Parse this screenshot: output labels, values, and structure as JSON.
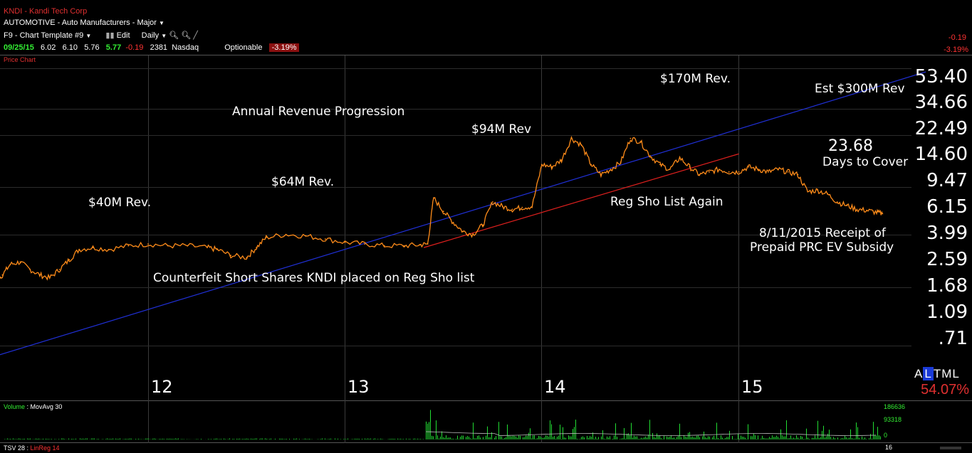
{
  "header": {
    "symbol_line": "KNDI - Kandi Tech Corp",
    "sector_line": "AUTOMOTIVE - Auto Manufacturers - Major",
    "template": "F9 - Chart Template #9",
    "edit": "Edit",
    "period": "Daily",
    "quote": {
      "date": "09/25/15",
      "open": "6.02",
      "high": "6.10",
      "low": "5.76",
      "close": "5.77",
      "change": "-0.19",
      "volume": "2381",
      "exchange": "Nasdaq",
      "optionable": "Optionable",
      "pct": "-3.19%"
    },
    "right_change": "-0.19",
    "right_pct": "-3.19%",
    "panel_label": "Price Chart"
  },
  "colors": {
    "price": "#ff8c1a",
    "linreg": "#e0201e",
    "trend": "#2030d8",
    "volume": "#22dd33",
    "up": "#33ee33",
    "down": "#ff3333",
    "label_red": "#e03030"
  },
  "chart_data": {
    "type": "line",
    "scale": "log",
    "title": "",
    "xlabel": "",
    "ylabel": "",
    "x_tick_labels": [
      "12",
      "13",
      "14",
      "15"
    ],
    "y_tick_labels": [
      "53.40",
      "34.66",
      "22.49",
      "14.60",
      "9.47",
      "6.15",
      "3.99",
      "2.59",
      "1.68",
      "1.09",
      ".71"
    ],
    "ylim": [
      0.6,
      60
    ],
    "xlim": [
      2011.0,
      2015.95
    ],
    "grid": true,
    "series": [
      {
        "name": "",
        "x": [
          2011.0,
          2011.03,
          2011.06,
          2011.08,
          2011.12,
          2011.18,
          2011.22,
          2011.26,
          2011.3,
          2011.35,
          2011.4,
          2011.45,
          2011.5,
          2011.55,
          2011.6,
          2011.65,
          2011.72,
          2011.8,
          2011.9,
          2012.0,
          2012.1,
          2012.2,
          2012.3,
          2012.35,
          2012.42,
          2012.5,
          2012.55,
          2012.6,
          2012.7,
          2012.8,
          2012.9,
          2013.0,
          2013.1,
          2013.2,
          2013.3,
          2013.38,
          2013.42,
          2013.45,
          2013.5,
          2013.55,
          2013.6,
          2013.65,
          2013.7,
          2013.75,
          2013.8,
          2013.85,
          2013.9,
          2013.95,
          2014.0,
          2014.05,
          2014.1,
          2014.15,
          2014.2,
          2014.25,
          2014.3,
          2014.35,
          2014.4,
          2014.45,
          2014.5,
          2014.55,
          2014.6,
          2014.65,
          2014.7,
          2014.75,
          2014.8,
          2014.85,
          2014.9,
          2014.95,
          2015.0,
          2015.05,
          2015.1,
          2015.15,
          2015.2,
          2015.25,
          2015.3,
          2015.35,
          2015.4,
          2015.45,
          2015.5,
          2015.55,
          2015.6,
          2015.65,
          2015.7,
          2015.73
        ],
        "y": [
          2.9,
          2.6,
          2.3,
          2.1,
          2.0,
          1.9,
          1.85,
          2.1,
          2.5,
          2.6,
          2.3,
          2.1,
          2.0,
          2.3,
          2.7,
          3.2,
          3.3,
          3.2,
          3.4,
          3.5,
          3.4,
          3.4,
          3.3,
          3.2,
          2.9,
          2.8,
          3.3,
          3.9,
          4.1,
          4.0,
          3.8,
          3.6,
          3.5,
          3.4,
          3.4,
          3.45,
          3.5,
          7.5,
          6.0,
          5.0,
          4.3,
          4.1,
          4.8,
          7.0,
          6.5,
          6.2,
          6.4,
          6.5,
          13.0,
          12.5,
          14.0,
          20.0,
          18.0,
          13.0,
          11.0,
          12.0,
          13.5,
          20.0,
          19.0,
          15.0,
          13.0,
          12.0,
          14.5,
          12.5,
          11.0,
          11.5,
          12.0,
          11.5,
          11.5,
          12.5,
          12.0,
          11.5,
          12.0,
          11.5,
          11.0,
          8.3,
          8.5,
          8.0,
          7.0,
          6.6,
          6.2,
          6.1,
          5.9,
          5.77
        ]
      }
    ],
    "overlays": [
      {
        "name": "",
        "type": "linreg",
        "points": [
          [
            2013.4,
            3.3
          ],
          [
            2015.0,
            15.5
          ]
        ]
      },
      {
        "name": "",
        "type": "trendline",
        "points": [
          [
            2011.0,
            0.44
          ],
          [
            2015.95,
            60.0
          ]
        ]
      }
    ],
    "annotations": [
      "$40M Rev.",
      "$64M Rev.",
      "Annual Revenue Progression",
      "$94M Rev",
      "$170M Rev.",
      "Est $300M Rev",
      "23.68",
      "Days to Cover",
      "Reg Sho List Again",
      "8/11/2015 Receipt of",
      "Prepaid PRC EV Subsidy",
      "Counterfeit Short Shares KNDI placed on Reg Sho list"
    ],
    "volume": {
      "label": "Volume",
      "ma_label": "MovAvg 30",
      "tick_labels": [
        "186636",
        "93318",
        "0"
      ],
      "max": 186636
    }
  },
  "right_panel": {
    "modes": [
      "A",
      "L",
      "T",
      "M",
      "L"
    ],
    "active_mode": "L",
    "value": "54.07%"
  },
  "footer": {
    "tsv": "TSV 28",
    "linreg": "LinReg 14",
    "date_fragment": "16"
  }
}
